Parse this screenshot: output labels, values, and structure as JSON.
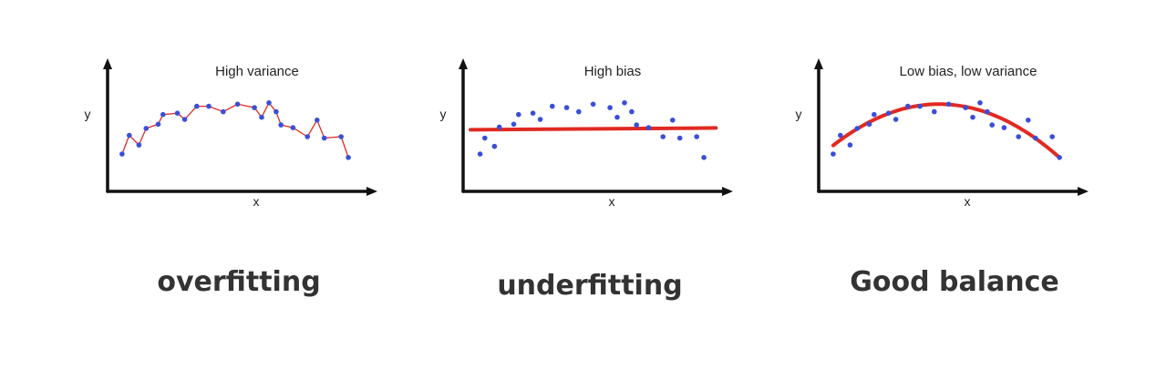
{
  "colors": {
    "axis": "#111111",
    "points": "#3a4fd6",
    "fit": "#e02a22",
    "caption": "#333333"
  },
  "panels": [
    {
      "title": "High variance",
      "x_label": "x",
      "y_label": "y",
      "caption": "overfitting",
      "fit": "interpolate",
      "points": [
        [
          0.03,
          0.25
        ],
        [
          0.06,
          0.52
        ],
        [
          0.1,
          0.38
        ],
        [
          0.13,
          0.62
        ],
        [
          0.18,
          0.68
        ],
        [
          0.2,
          0.82
        ],
        [
          0.26,
          0.84
        ],
        [
          0.29,
          0.75
        ],
        [
          0.34,
          0.94
        ],
        [
          0.39,
          0.94
        ],
        [
          0.45,
          0.86
        ],
        [
          0.51,
          0.97
        ],
        [
          0.58,
          0.92
        ],
        [
          0.61,
          0.78
        ],
        [
          0.64,
          0.99
        ],
        [
          0.67,
          0.86
        ],
        [
          0.69,
          0.67
        ],
        [
          0.74,
          0.63
        ],
        [
          0.8,
          0.5
        ],
        [
          0.84,
          0.74
        ],
        [
          0.87,
          0.48
        ],
        [
          0.94,
          0.5
        ],
        [
          0.97,
          0.2
        ]
      ]
    },
    {
      "title": "High bias",
      "x_label": "x",
      "y_label": "y",
      "caption": "underfitting",
      "fit": "flat",
      "fit_level": 0.6,
      "points": [
        [
          0.04,
          0.25
        ],
        [
          0.06,
          0.48
        ],
        [
          0.1,
          0.36
        ],
        [
          0.12,
          0.64
        ],
        [
          0.18,
          0.68
        ],
        [
          0.2,
          0.82
        ],
        [
          0.26,
          0.84
        ],
        [
          0.29,
          0.75
        ],
        [
          0.34,
          0.94
        ],
        [
          0.4,
          0.92
        ],
        [
          0.45,
          0.86
        ],
        [
          0.51,
          0.97
        ],
        [
          0.58,
          0.92
        ],
        [
          0.61,
          0.78
        ],
        [
          0.64,
          0.99
        ],
        [
          0.67,
          0.86
        ],
        [
          0.69,
          0.67
        ],
        [
          0.74,
          0.63
        ],
        [
          0.8,
          0.5
        ],
        [
          0.84,
          0.74
        ],
        [
          0.87,
          0.48
        ],
        [
          0.94,
          0.5
        ],
        [
          0.97,
          0.2
        ]
      ]
    },
    {
      "title": "Low bias, low variance",
      "x_label": "x",
      "y_label": "y",
      "caption": "Good balance",
      "fit": "parabola",
      "fit_params": {
        "peak_x": 0.47,
        "peak_y": 0.97,
        "end_x": 0.97,
        "end_y": 0.2,
        "start_x": 0.03
      },
      "points": [
        [
          0.03,
          0.25
        ],
        [
          0.06,
          0.52
        ],
        [
          0.1,
          0.38
        ],
        [
          0.13,
          0.62
        ],
        [
          0.18,
          0.68
        ],
        [
          0.2,
          0.82
        ],
        [
          0.26,
          0.84
        ],
        [
          0.29,
          0.75
        ],
        [
          0.34,
          0.94
        ],
        [
          0.39,
          0.94
        ],
        [
          0.45,
          0.86
        ],
        [
          0.51,
          0.97
        ],
        [
          0.58,
          0.92
        ],
        [
          0.61,
          0.78
        ],
        [
          0.64,
          0.99
        ],
        [
          0.67,
          0.86
        ],
        [
          0.69,
          0.67
        ],
        [
          0.74,
          0.63
        ],
        [
          0.8,
          0.5
        ],
        [
          0.84,
          0.74
        ],
        [
          0.87,
          0.48
        ],
        [
          0.94,
          0.5
        ],
        [
          0.97,
          0.2
        ]
      ]
    }
  ]
}
